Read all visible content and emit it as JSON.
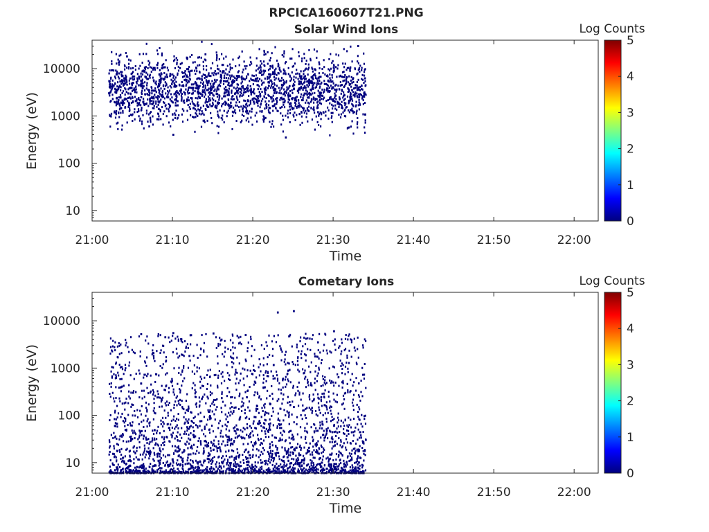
{
  "figure_title": "RPCICA160607T21.PNG",
  "chart_data": [
    {
      "type": "heatmap",
      "title": "Solar Wind Ions",
      "xlabel": "Time",
      "ylabel": "Energy (eV)",
      "yscale": "log",
      "ylim": [
        6,
        40000
      ],
      "xlim": [
        "21:00",
        "22:03"
      ],
      "xticks": [
        "21:00",
        "21:10",
        "21:20",
        "21:30",
        "21:40",
        "21:50",
        "22:00"
      ],
      "yticks": [
        "10",
        "100",
        "1000",
        "10000"
      ],
      "grid": false,
      "colorbar": {
        "label": "Log Counts",
        "ticks": [
          "0",
          "1",
          "2",
          "3",
          "4",
          "5"
        ],
        "range": [
          0,
          5
        ],
        "colormap": "jet"
      },
      "data_extent": {
        "time": [
          "21:02",
          "21:34"
        ],
        "energy_eV": [
          300,
          35000
        ]
      },
      "level_log_counts": 0,
      "points_time_energy_eV": [
        [
          "21:02",
          3000
        ],
        [
          "21:03",
          8000
        ],
        [
          "21:04",
          1500
        ],
        [
          "21:05",
          5000
        ],
        [
          "21:06",
          2500
        ],
        [
          "21:07",
          600
        ],
        [
          "21:08",
          12000
        ],
        [
          "21:10",
          400
        ],
        [
          "21:12",
          4000
        ],
        [
          "21:14",
          20000
        ],
        [
          "21:16",
          900
        ],
        [
          "21:18",
          7000
        ],
        [
          "21:20",
          2000
        ],
        [
          "21:22",
          15000
        ],
        [
          "21:24",
          350
        ],
        [
          "21:26",
          6000
        ],
        [
          "21:28",
          1200
        ],
        [
          "21:30",
          9000
        ],
        [
          "21:32",
          2500
        ],
        [
          "21:33",
          30000
        ]
      ]
    },
    {
      "type": "heatmap",
      "title": "Cometary Ions",
      "xlabel": "Time",
      "ylabel": "Energy (eV)",
      "yscale": "log",
      "ylim": [
        6,
        40000
      ],
      "xlim": [
        "21:00",
        "22:03"
      ],
      "xticks": [
        "21:00",
        "21:10",
        "21:20",
        "21:30",
        "21:40",
        "21:50",
        "22:00"
      ],
      "yticks": [
        "10",
        "100",
        "1000",
        "10000"
      ],
      "grid": false,
      "colorbar": {
        "label": "Log Counts",
        "ticks": [
          "0",
          "1",
          "2",
          "3",
          "4",
          "5"
        ],
        "range": [
          0,
          5
        ],
        "colormap": "jet"
      },
      "data_extent": {
        "time": [
          "21:02",
          "21:34"
        ],
        "energy_eV": [
          6,
          16000
        ]
      },
      "level_log_counts": 0,
      "points_time_energy_eV": [
        [
          "21:06",
          5200
        ],
        [
          "21:09",
          4500
        ],
        [
          "21:10",
          5500
        ],
        [
          "21:15",
          5400
        ],
        [
          "21:16",
          4000
        ],
        [
          "21:19",
          5000
        ],
        [
          "21:23",
          15000
        ],
        [
          "21:25",
          16000
        ],
        [
          "21:30",
          6000
        ],
        [
          "21:28",
          3500
        ],
        [
          "21:12",
          1800
        ],
        [
          "21:20",
          900
        ],
        [
          "21:05",
          300
        ],
        [
          "21:25",
          150
        ],
        [
          "21:30",
          60
        ],
        [
          "21:15",
          25
        ]
      ]
    }
  ]
}
